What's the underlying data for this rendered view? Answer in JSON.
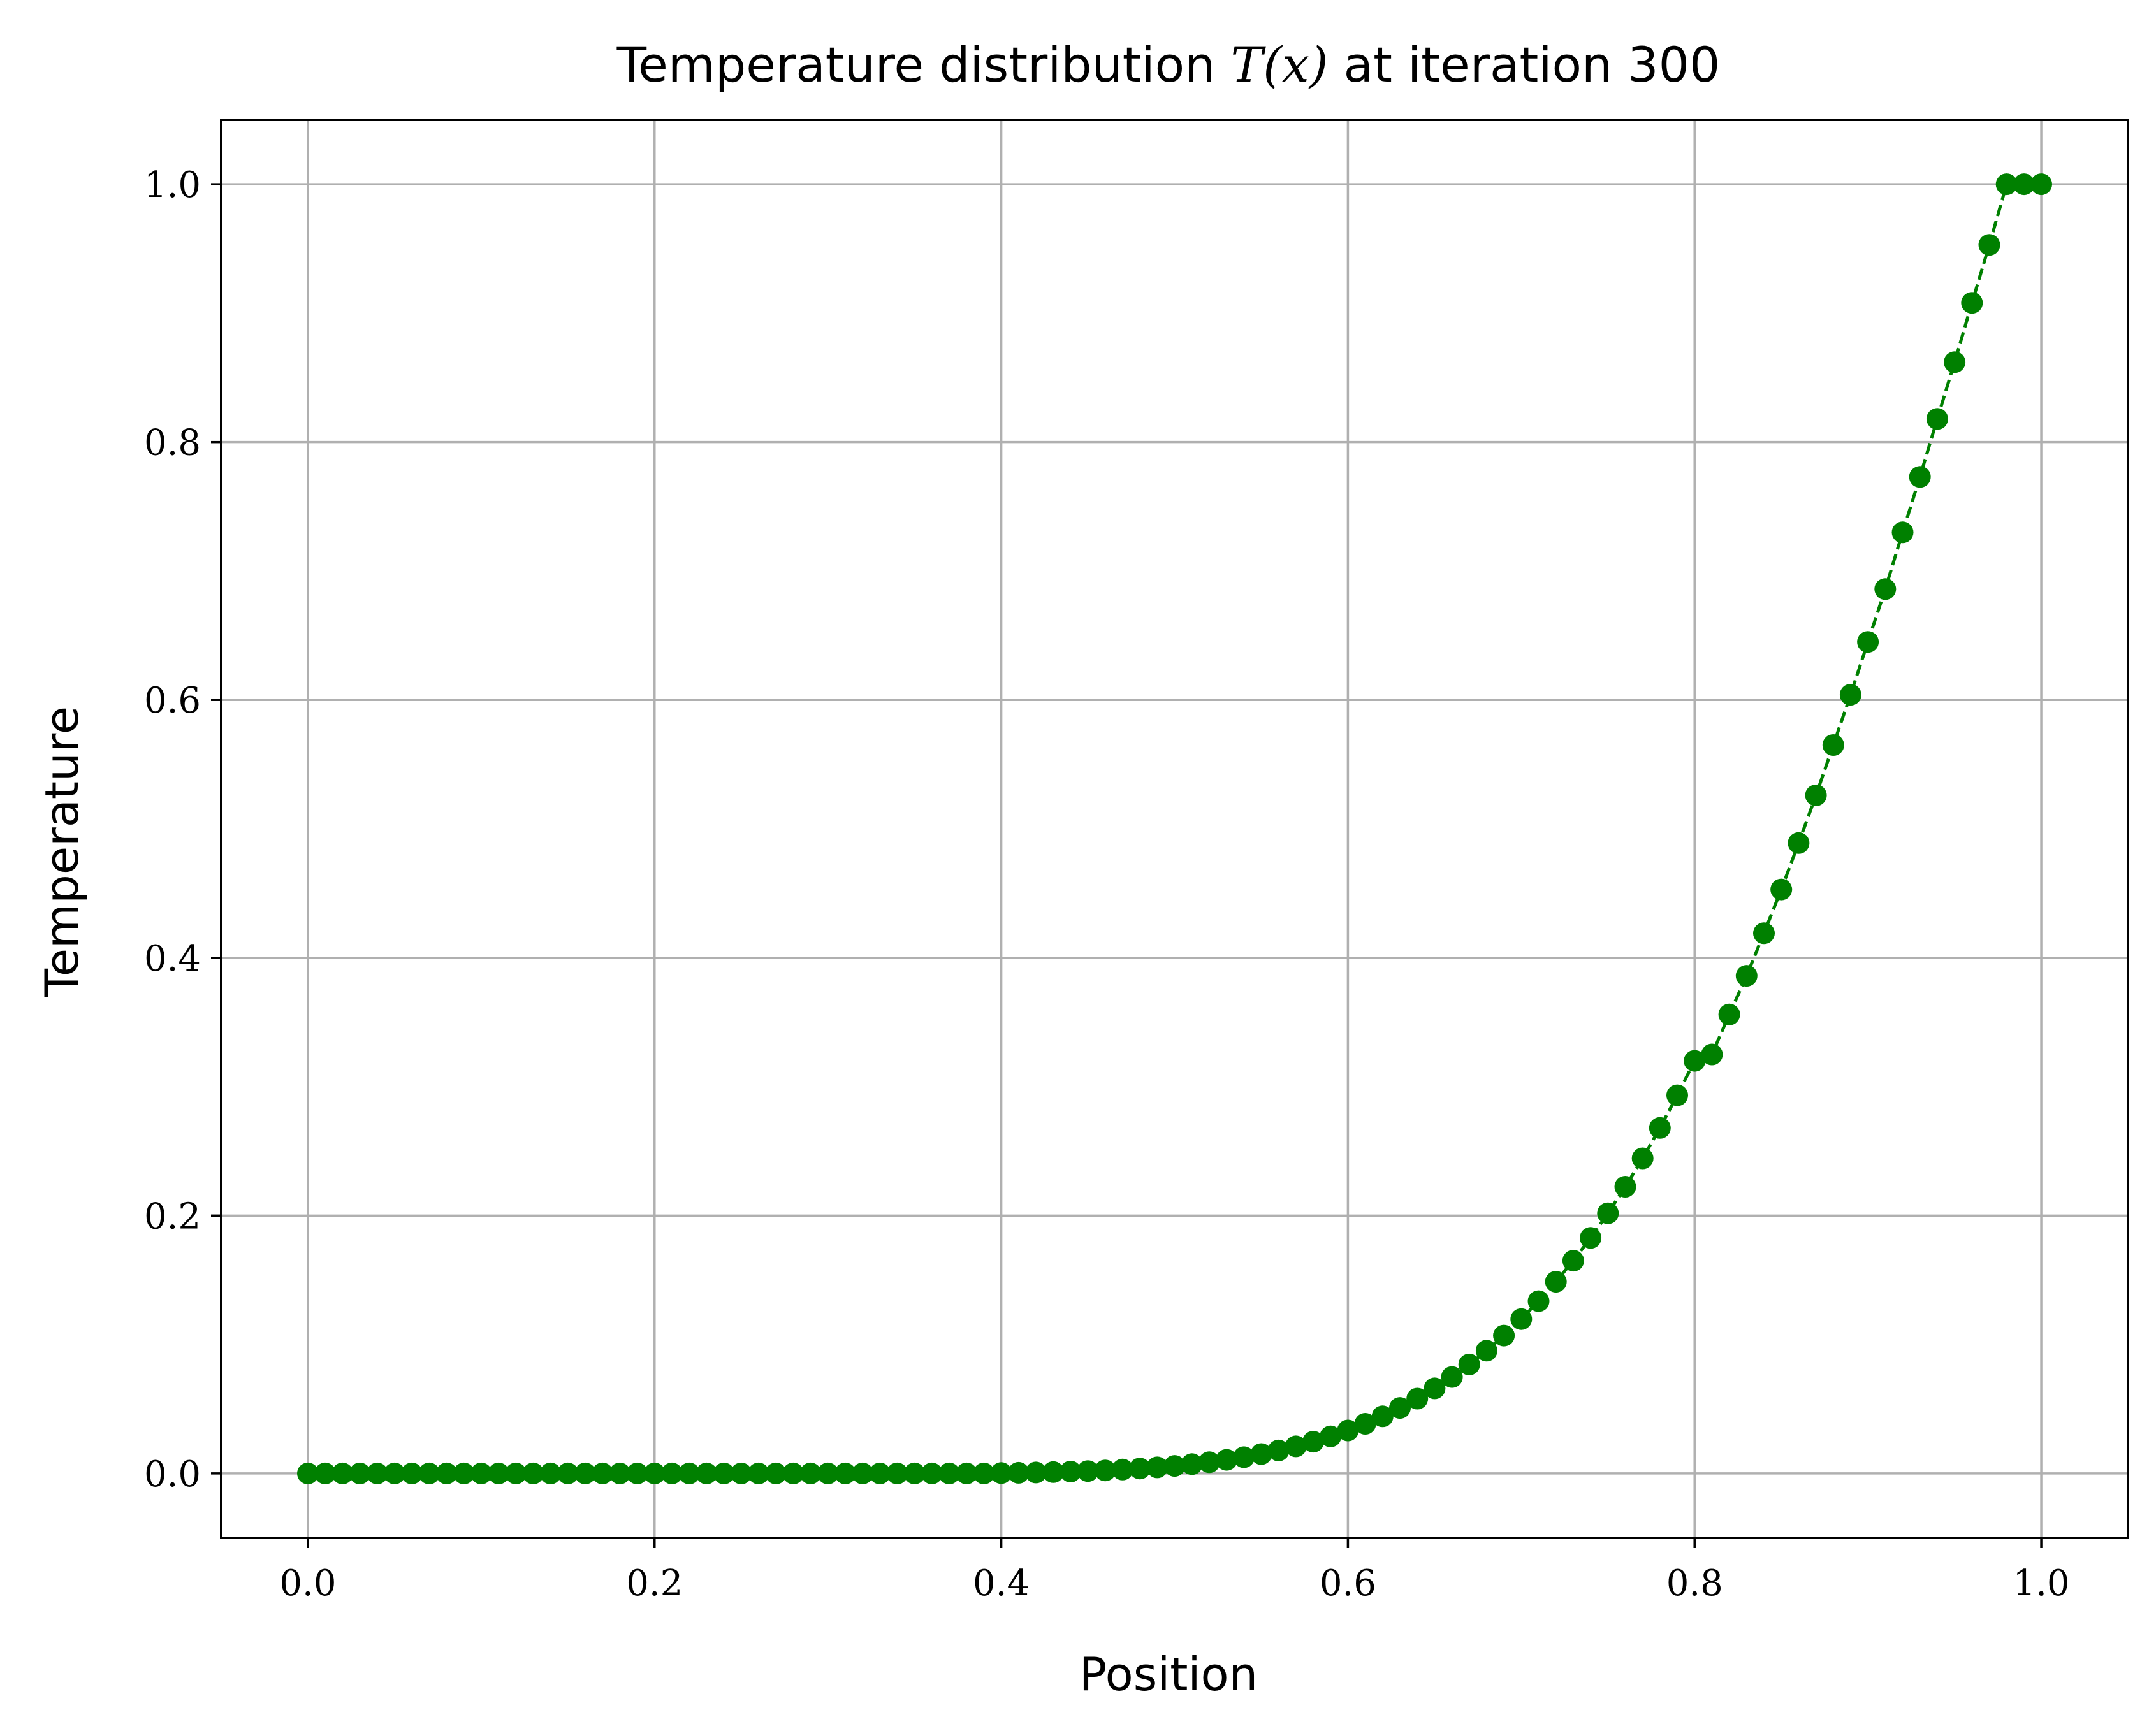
{
  "chart_data": {
    "type": "line",
    "title": {
      "prefix": "Temperature distribution ",
      "math": "T(x)",
      "suffix": " at iteration 300"
    },
    "xlabel": "Position",
    "ylabel": "Temperature",
    "xlim": [
      -0.05,
      1.05
    ],
    "ylim": [
      -0.05,
      1.05
    ],
    "xticks": [
      0.0,
      0.2,
      0.4,
      0.6,
      0.8,
      1.0
    ],
    "yticks": [
      0.0,
      0.2,
      0.4,
      0.6,
      0.8,
      1.0
    ],
    "xtick_labels": [
      "0.0",
      "0.2",
      "0.4",
      "0.6",
      "0.8",
      "1.0"
    ],
    "ytick_labels": [
      "0.0",
      "0.2",
      "0.4",
      "0.6",
      "0.8",
      "1.0"
    ],
    "grid": true,
    "legend": "none",
    "series": [
      {
        "color": "#008000",
        "line_style": "dashed",
        "marker": "circle",
        "x": [
          0.0,
          0.01,
          0.02,
          0.03,
          0.04,
          0.05,
          0.06,
          0.07,
          0.08,
          0.09,
          0.1,
          0.11,
          0.12,
          0.13,
          0.14,
          0.15,
          0.16,
          0.17,
          0.18,
          0.19,
          0.2,
          0.21,
          0.22,
          0.23,
          0.24,
          0.25,
          0.26,
          0.27,
          0.28,
          0.29,
          0.3,
          0.31,
          0.32,
          0.33,
          0.34,
          0.35,
          0.36,
          0.37,
          0.38,
          0.39,
          0.4,
          0.41,
          0.42,
          0.43,
          0.44,
          0.45,
          0.46,
          0.47,
          0.48,
          0.49,
          0.5,
          0.51,
          0.52,
          0.53,
          0.54,
          0.55,
          0.56,
          0.57,
          0.58,
          0.59,
          0.6,
          0.61,
          0.62,
          0.63,
          0.64,
          0.65,
          0.66,
          0.67,
          0.68,
          0.69,
          0.7,
          0.71,
          0.72,
          0.73,
          0.74,
          0.75,
          0.76,
          0.77,
          0.78,
          0.79,
          0.8,
          0.81,
          0.82,
          0.83,
          0.84,
          0.85,
          0.86,
          0.87,
          0.88,
          0.89,
          0.9,
          0.91,
          0.92,
          0.93,
          0.94,
          0.95,
          0.96,
          0.97,
          0.98,
          0.99,
          1.0
        ],
        "y": [
          0.0,
          0.0,
          0.0,
          0.0,
          0.0,
          0.0,
          0.0,
          0.0,
          0.0,
          0.0,
          0.0,
          0.0,
          0.0,
          0.0,
          0.0,
          0.0,
          0.0,
          0.0,
          0.0,
          0.0,
          0.0,
          0.0,
          0.0,
          0.0,
          0.0,
          0.0,
          0.0,
          0.0,
          0.0,
          0.0,
          0.0,
          0.0,
          0.0,
          0.0,
          0.0,
          0.0,
          0.0,
          0.0,
          0.0,
          0.0,
          0.0003,
          0.0005,
          0.0007,
          0.001,
          0.0014,
          0.0018,
          0.0023,
          0.003,
          0.0038,
          0.0047,
          0.0058,
          0.0072,
          0.0087,
          0.0105,
          0.0126,
          0.015,
          0.0178,
          0.021,
          0.0246,
          0.0287,
          0.0333,
          0.0385,
          0.0443,
          0.0508,
          0.058,
          0.066,
          0.0748,
          0.0845,
          0.0952,
          0.1069,
          0.1197,
          0.1336,
          0.1487,
          0.165,
          0.1827,
          0.2018,
          0.2224,
          0.2444,
          0.268,
          0.2933,
          0.32,
          0.325,
          0.356,
          0.386,
          0.419,
          0.453,
          0.489,
          0.526,
          0.565,
          0.604,
          0.645,
          0.686,
          0.73,
          0.773,
          0.818,
          0.862,
          0.908,
          0.953,
          1.0,
          1.0,
          1.0
        ]
      }
    ]
  }
}
